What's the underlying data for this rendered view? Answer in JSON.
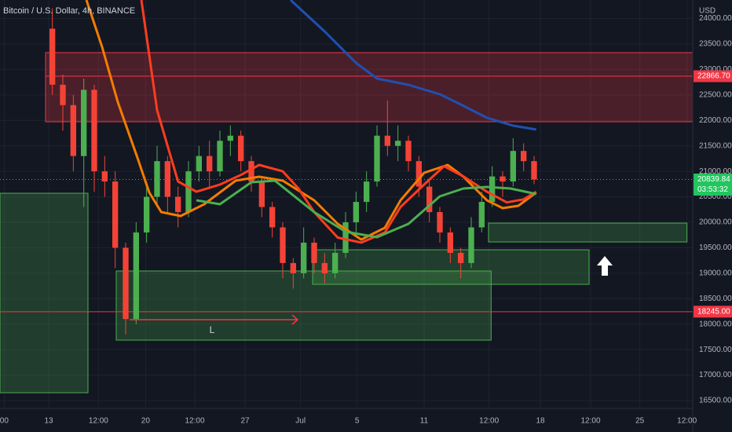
{
  "chart_data": {
    "type": "candlestick",
    "title": "Bitcoin / U.S. Dollar, 4h, BINANCE",
    "currency": "USD",
    "annotation": "L",
    "up_color": "#4caf50",
    "down_color": "#f44336",
    "xlim": [
      0,
      66.15
    ],
    "ylim": [
      16346,
      24363
    ],
    "yticks": [
      {
        "value": 16500,
        "label": "16500.00"
      },
      {
        "value": 17000,
        "label": "17000.00"
      },
      {
        "value": 17500,
        "label": "17500.00"
      },
      {
        "value": 18000,
        "label": "18000.00"
      },
      {
        "value": 18500,
        "label": "18500.00"
      },
      {
        "value": 19000,
        "label": "19000.00"
      },
      {
        "value": 19500,
        "label": "19500.00"
      },
      {
        "value": 20000,
        "label": "20000.00"
      },
      {
        "value": 20500,
        "label": "20500.00"
      },
      {
        "value": 21000,
        "label": "21000.00"
      },
      {
        "value": 21500,
        "label": "21500.00"
      },
      {
        "value": 22000,
        "label": "22000.00"
      },
      {
        "value": 22500,
        "label": "22500.00"
      },
      {
        "value": 23000,
        "label": "23000.00"
      },
      {
        "value": 23500,
        "label": "23500.00"
      },
      {
        "value": 24000,
        "label": "24000.00"
      }
    ],
    "xticks": [
      {
        "value": 0.4,
        "label": "00"
      },
      {
        "value": 4.65,
        "label": "13"
      },
      {
        "value": 9.4,
        "label": "12:00"
      },
      {
        "value": 13.9,
        "label": "20"
      },
      {
        "value": 18.6,
        "label": "12:00"
      },
      {
        "value": 23.4,
        "label": "27"
      },
      {
        "value": 28.7,
        "label": "Jul"
      },
      {
        "value": 34.1,
        "label": "5"
      },
      {
        "value": 40.5,
        "label": "11"
      },
      {
        "value": 46.7,
        "label": "12:00"
      },
      {
        "value": 51.6,
        "label": "18"
      },
      {
        "value": 56.4,
        "label": "12:00"
      },
      {
        "value": 61.1,
        "label": "25"
      },
      {
        "value": 65.6,
        "label": "12:00"
      }
    ],
    "x": [
      5,
      6,
      7,
      8,
      9,
      10,
      11,
      12,
      13,
      14,
      15,
      16,
      17,
      18,
      19,
      20,
      21,
      22,
      23,
      24,
      25,
      26,
      27,
      28,
      29,
      30,
      31,
      32,
      33,
      34,
      35,
      36,
      37,
      38,
      39,
      40,
      41,
      42,
      43,
      44,
      45,
      46,
      47,
      48,
      49,
      50,
      51
    ],
    "open": [
      23800,
      22700,
      22300,
      21300,
      22600,
      21000,
      20800,
      19500,
      18100,
      19800,
      20500,
      21200,
      20500,
      20200,
      21000,
      21300,
      21000,
      21600,
      21700,
      21200,
      20800,
      20300,
      19900,
      19200,
      19000,
      19600,
      19200,
      19000,
      19400,
      20000,
      20400,
      20800,
      21700,
      21500,
      21600,
      21200,
      20700,
      20200,
      19800,
      19400,
      19200,
      19900,
      20400,
      20900,
      20800,
      21400,
      21200
    ],
    "high": [
      24200,
      22900,
      22500,
      22821,
      22700,
      21300,
      21000,
      19600,
      20000,
      20700,
      21500,
      21300,
      20700,
      21200,
      21500,
      21600,
      21800,
      21900,
      21800,
      21300,
      20900,
      20400,
      20000,
      19300,
      19900,
      19700,
      19400,
      19600,
      20200,
      20600,
      21000,
      21900,
      22390,
      21900,
      21700,
      21300,
      20800,
      20300,
      19900,
      19500,
      20100,
      20600,
      21100,
      21000,
      21650,
      21550,
      21300
    ],
    "low": [
      22500,
      21800,
      21000,
      20300,
      20600,
      20500,
      19100,
      17800,
      18000,
      19600,
      20300,
      20200,
      19900,
      20100,
      20800,
      20700,
      20900,
      21300,
      21000,
      20600,
      20100,
      19700,
      18900,
      18700,
      18900,
      19000,
      18800,
      18900,
      19300,
      19800,
      20200,
      20700,
      21300,
      21200,
      21000,
      20500,
      20000,
      19600,
      19200,
      18900,
      19100,
      19800,
      20300,
      20500,
      20700,
      21000,
      20750
    ],
    "close": [
      22700,
      22300,
      21300,
      22600,
      21000,
      20800,
      19500,
      18100,
      19800,
      20500,
      21200,
      20500,
      20200,
      21000,
      21300,
      21000,
      21600,
      21700,
      21200,
      20800,
      20300,
      19900,
      19200,
      19000,
      19600,
      19200,
      19000,
      19400,
      20000,
      20400,
      20800,
      21700,
      21500,
      21600,
      21200,
      20700,
      20200,
      19800,
      19400,
      19200,
      19900,
      20400,
      20900,
      20800,
      21400,
      21200,
      20840
    ],
    "lines": [
      {
        "color": "#2150b0",
        "x": [
          27.75,
          31,
          34,
          36,
          39,
          42,
          44,
          46.5,
          49,
          51.2
        ],
        "values": [
          24363,
          23746,
          23130,
          22821,
          22698,
          22513,
          22312,
          22050,
          21896,
          21820
        ]
      },
      {
        "color": "#f57c00",
        "x": [
          8.25,
          9.75,
          11.25,
          13.1,
          14.25,
          15.4,
          17.25,
          19.5,
          22.5,
          24.75,
          27,
          30,
          32.25,
          34.5,
          36.75,
          38.25,
          40.5,
          42.75,
          44.25,
          46.5,
          48,
          49.5,
          51.2
        ],
        "values": [
          24363,
          23440,
          22359,
          21280,
          20586,
          20200,
          20123,
          20354,
          20817,
          20894,
          20817,
          20431,
          19969,
          19660,
          19892,
          20431,
          20971,
          21125,
          20894,
          20431,
          20277,
          20323,
          20586
        ]
      },
      {
        "color": "#ff3d1f",
        "x": [
          13.5,
          15,
          17,
          18.75,
          21,
          23,
          24.75,
          27,
          28.5,
          30,
          32.25,
          34.5,
          36.75,
          38.25,
          40.5,
          42.4,
          44.25,
          46.5,
          48.4,
          50,
          51.2
        ],
        "values": [
          24363,
          22200,
          20800,
          20600,
          20740,
          20930,
          21125,
          21000,
          20663,
          20200,
          19700,
          19600,
          19800,
          20300,
          20740,
          21100,
          20900,
          20600,
          20390,
          20450,
          20600
        ]
      },
      {
        "color": "#4caf50",
        "x": [
          18.75,
          21,
          24,
          26.25,
          30,
          33,
          36,
          39,
          42,
          44.25,
          46.5,
          48.75,
          51.2
        ],
        "values": [
          20431,
          20354,
          20786,
          20817,
          20200,
          19815,
          19707,
          19969,
          20508,
          20663,
          20694,
          20663,
          20555
        ]
      }
    ],
    "zones": [
      {
        "color": "#f23645",
        "x": [
          4.35,
          66.15
        ],
        "y": [
          23330,
          21973
        ]
      },
      {
        "color": "#4caf50",
        "x": [
          0,
          8.4
        ],
        "y": [
          20570,
          16654
        ]
      },
      {
        "color": "#4caf50",
        "x": [
          11.1,
          46.9
        ],
        "y": [
          19044,
          17687
        ]
      },
      {
        "color": "#4caf50",
        "x": [
          29.85,
          56.25
        ],
        "y": [
          19460,
          18782
        ]
      },
      {
        "color": "#4caf50",
        "x": [
          46.65,
          65.6
        ],
        "y": [
          19984,
          19614
        ]
      }
    ],
    "price_lines": [
      {
        "value": 22866.7,
        "label": "22866.70",
        "color": "#f23645",
        "style": "solid",
        "from": 4.35
      },
      {
        "value": 18245,
        "label": "18245.00",
        "color": "#f23645",
        "style": "solid",
        "from": 0
      },
      {
        "value": 20839.84,
        "label": "20839.84",
        "sublabel": "03:53:32",
        "color": "#22c55e",
        "style": "dotted",
        "from": 0
      }
    ]
  }
}
